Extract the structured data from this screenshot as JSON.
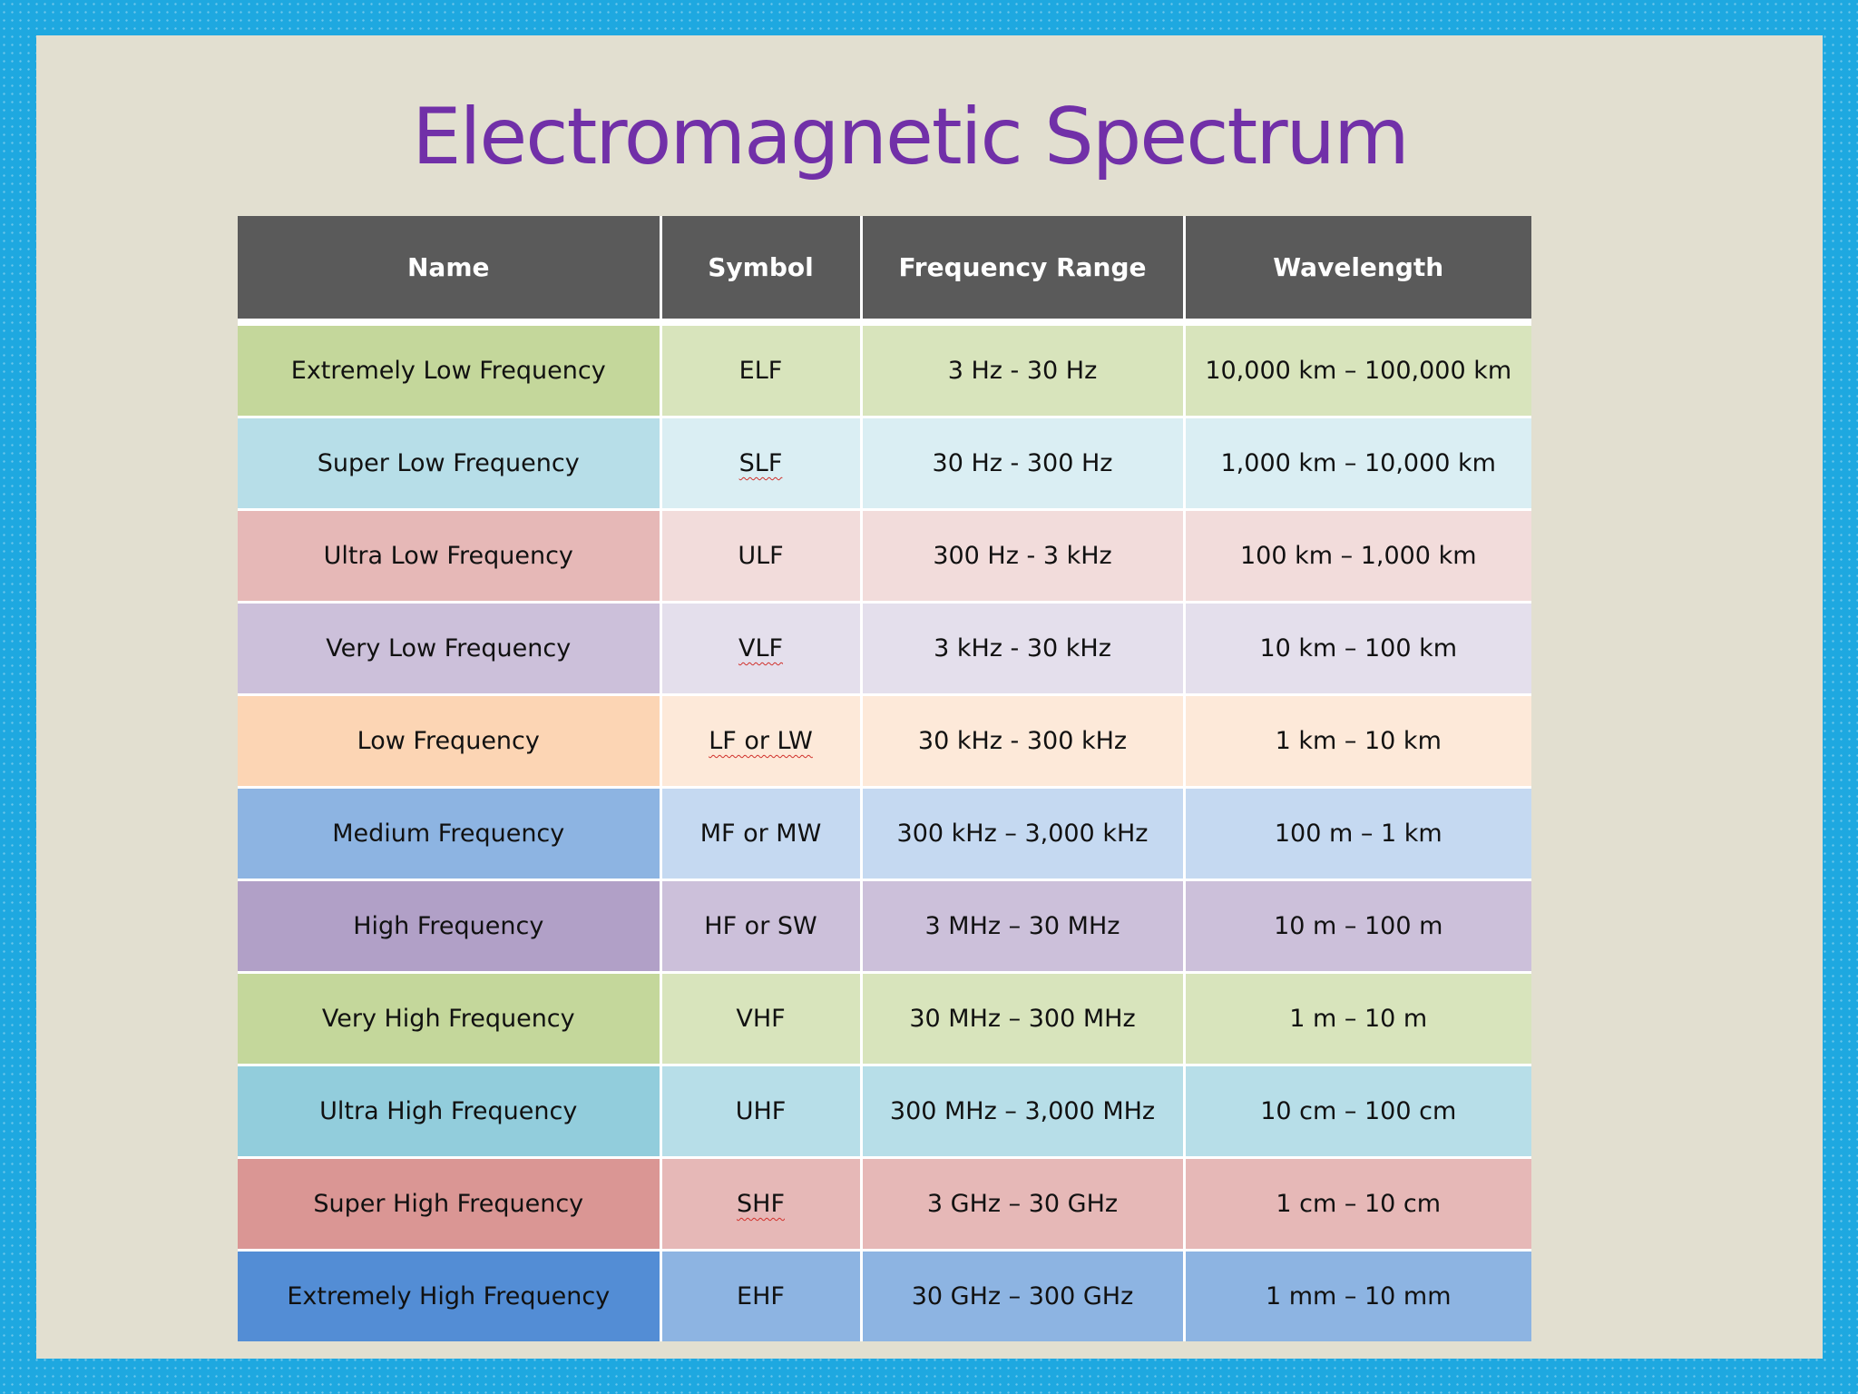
{
  "title": "Electromagnetic Spectrum",
  "table": {
    "headers": [
      "Name",
      "Symbol",
      "Frequency Range",
      "Wavelength"
    ],
    "rows": [
      {
        "name": "Extremely Low Frequency",
        "symbol": "ELF",
        "frequency": "3 Hz - 30 Hz",
        "wavelength": "10,000 km – 100,000 km",
        "colors": [
          "#c4d79b",
          "#d8e4bc"
        ]
      },
      {
        "name": "Super Low Frequency",
        "symbol": "SLF",
        "frequency": "30 Hz - 300 Hz",
        "wavelength": "1,000 km – 10,000 km",
        "colors": [
          "#b7dee8",
          "#daeef3"
        ]
      },
      {
        "name": "Ultra Low Frequency",
        "symbol": "ULF",
        "frequency": "300 Hz - 3 kHz",
        "wavelength": "100 km – 1,000 km",
        "colors": [
          "#e6b8b7",
          "#f2dcdb"
        ]
      },
      {
        "name": "Very Low Frequency",
        "symbol": "VLF",
        "frequency": "3 kHz - 30 kHz",
        "wavelength": "10 km – 100 km",
        "colors": [
          "#ccc0da",
          "#e4dfec"
        ]
      },
      {
        "name": "Low Frequency",
        "symbol": "LF or LW",
        "frequency": "30 kHz - 300 kHz",
        "wavelength": "1 km – 10 km",
        "colors": [
          "#fcd5b4",
          "#fde9d9"
        ]
      },
      {
        "name": "Medium Frequency",
        "symbol": "MF or MW",
        "frequency": "300 kHz – 3,000 kHz",
        "wavelength": "100 m – 1 km",
        "colors": [
          "#8db4e2",
          "#c5d9f1"
        ]
      },
      {
        "name": "High Frequency",
        "symbol": "HF or SW",
        "frequency": "3 MHz – 30 MHz",
        "wavelength": "10 m – 100 m",
        "colors": [
          "#b1a0c7",
          "#ccc0da"
        ]
      },
      {
        "name": "Very High Frequency",
        "symbol": "VHF",
        "frequency": "30 MHz – 300 MHz",
        "wavelength": "1 m – 10 m",
        "colors": [
          "#c4d79b",
          "#d8e4bc"
        ]
      },
      {
        "name": "Ultra High Frequency",
        "symbol": "UHF",
        "frequency": "300 MHz – 3,000 MHz",
        "wavelength": "10 cm – 100 cm",
        "colors": [
          "#92cddc",
          "#b7dee8"
        ]
      },
      {
        "name": "Super High Frequency",
        "symbol": "SHF",
        "frequency": "3 GHz – 30 GHz",
        "wavelength": "1 cm – 10 cm",
        "colors": [
          "#da9694",
          "#e6b8b7"
        ]
      },
      {
        "name": "Extremely High Frequency",
        "symbol": "EHF",
        "frequency": "30 GHz – 300 GHz",
        "wavelength": "1 mm – 10 mm",
        "colors": [
          "#538dd5",
          "#8db4e2"
        ]
      }
    ]
  },
  "colors": {
    "frame": "#1ea8e0",
    "slide_background": "#e2dfd0",
    "title": "#7130a8",
    "header_background": "#5a5a5a"
  }
}
